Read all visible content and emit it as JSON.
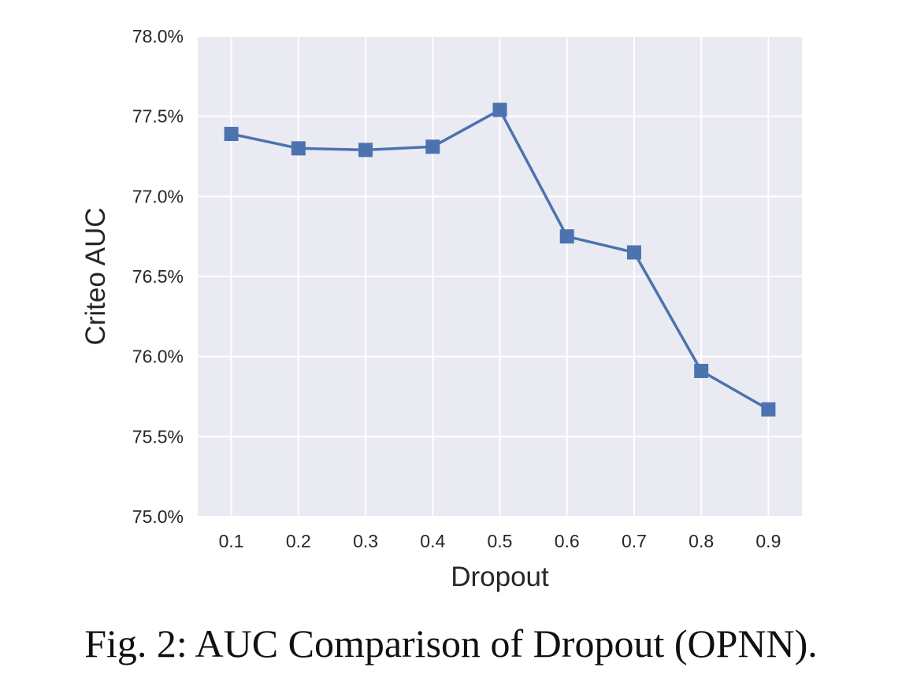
{
  "caption": "Fig. 2: AUC Comparison of Dropout (OPNN).",
  "chart_data": {
    "type": "line",
    "title": "",
    "xlabel": "Dropout",
    "ylabel": "Criteo AUC",
    "x": [
      0.1,
      0.2,
      0.3,
      0.4,
      0.5,
      0.6,
      0.7,
      0.8,
      0.9
    ],
    "x_tick_labels": [
      "0.1",
      "0.2",
      "0.3",
      "0.4",
      "0.5",
      "0.6",
      "0.7",
      "0.8",
      "0.9"
    ],
    "y_tick_values": [
      75.0,
      75.5,
      76.0,
      76.5,
      77.0,
      77.5,
      78.0
    ],
    "y_tick_labels": [
      "75.0%",
      "75.5%",
      "76.0%",
      "76.5%",
      "77.0%",
      "77.5%",
      "78.0%"
    ],
    "ylim": [
      75.0,
      78.0
    ],
    "xlim": [
      0.05,
      0.95
    ],
    "grid": true,
    "legend": "none",
    "series": [
      {
        "values": [
          77.39,
          77.3,
          77.29,
          77.31,
          77.54,
          76.75,
          76.65,
          75.91,
          75.67
        ],
        "marker": "square",
        "color": "#4c72b0"
      }
    ],
    "colors": {
      "plot_background": "#eaeaf2",
      "grid": "#ffffff",
      "line": "#4c72b0"
    }
  }
}
